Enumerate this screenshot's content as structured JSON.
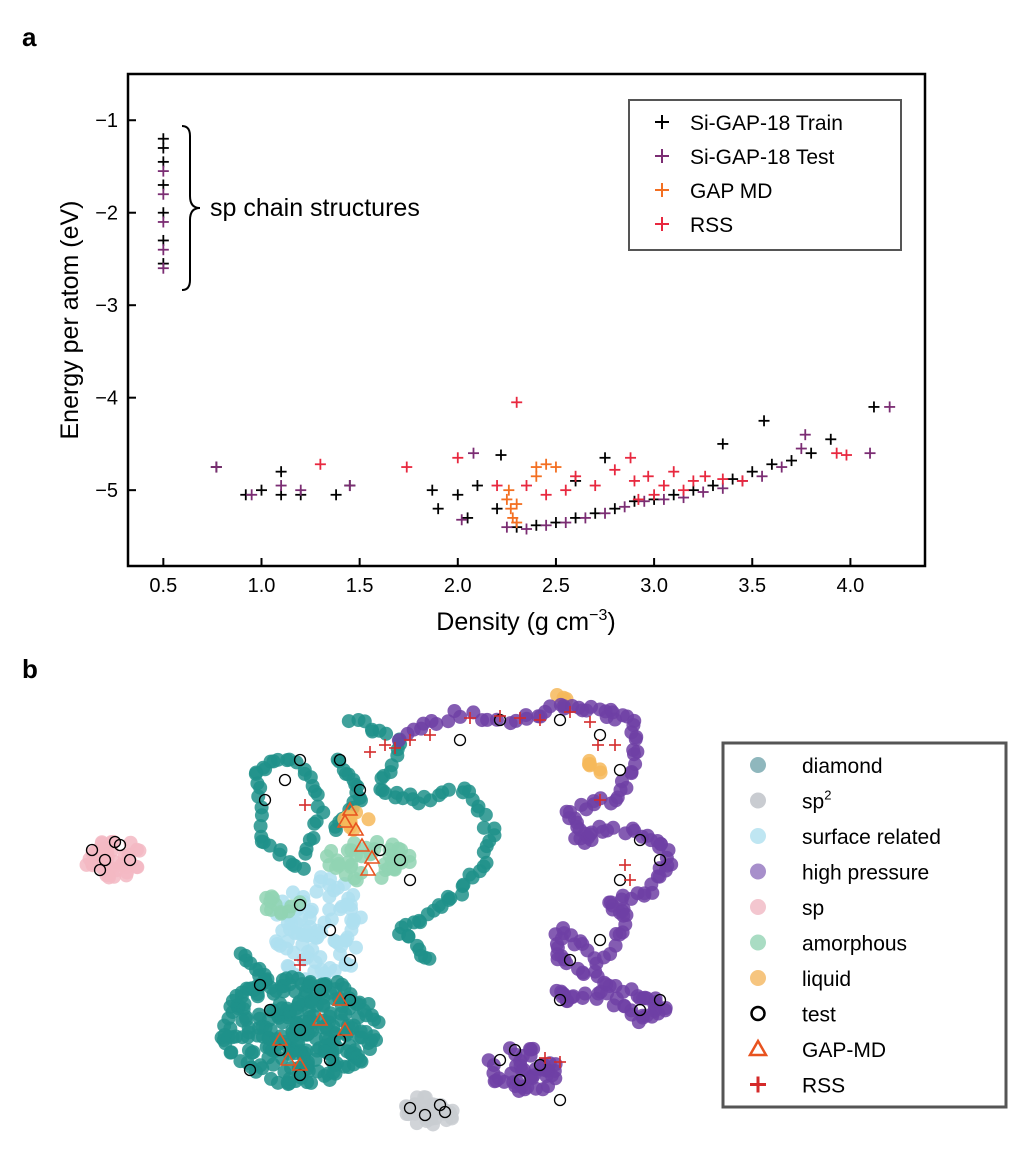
{
  "panel_labels": {
    "a": "a",
    "b": "b"
  },
  "chart_data": [
    {
      "type": "scatter",
      "panel": "a",
      "xlabel": "Density (g cm",
      "xlabel_sup": "−3",
      "xlabel_end": ")",
      "ylabel": "Energy per atom (eV)",
      "xlim": [
        0.32,
        4.38
      ],
      "ylim": [
        -5.82,
        -0.5
      ],
      "xticks": [
        0.5,
        1.0,
        1.5,
        2.0,
        2.5,
        3.0,
        3.5,
        4.0
      ],
      "xtick_labels": [
        "0.5",
        "1.0",
        "1.5",
        "2.0",
        "2.5",
        "3.0",
        "3.5",
        "4.0"
      ],
      "yticks": [
        -1,
        -2,
        -3,
        -4,
        -5
      ],
      "ytick_labels": [
        "−1",
        "−2",
        "−3",
        "−4",
        "−5"
      ],
      "annotation": "sp chain structures",
      "legend_position": "top-right",
      "series": [
        {
          "name": "Si-GAP-18 Train",
          "color": "#000000",
          "points": [
            [
              0.5,
              -1.2
            ],
            [
              0.5,
              -1.3
            ],
            [
              0.5,
              -1.45
            ],
            [
              0.5,
              -1.7
            ],
            [
              0.5,
              -2.0
            ],
            [
              0.5,
              -2.3
            ],
            [
              0.5,
              -2.55
            ],
            [
              0.77,
              -4.75
            ],
            [
              0.92,
              -5.05
            ],
            [
              1.0,
              -5.0
            ],
            [
              1.1,
              -4.8
            ],
            [
              1.1,
              -5.05
            ],
            [
              1.2,
              -5.05
            ],
            [
              1.38,
              -5.05
            ],
            [
              1.45,
              -4.95
            ],
            [
              1.9,
              -5.2
            ],
            [
              2.0,
              -5.05
            ],
            [
              2.05,
              -5.3
            ],
            [
              2.1,
              -4.95
            ],
            [
              2.2,
              -5.2
            ],
            [
              2.3,
              -5.4
            ],
            [
              2.4,
              -5.38
            ],
            [
              2.5,
              -5.35
            ],
            [
              2.6,
              -5.3
            ],
            [
              2.7,
              -5.25
            ],
            [
              2.8,
              -5.2
            ],
            [
              2.9,
              -5.12
            ],
            [
              3.0,
              -5.1
            ],
            [
              3.1,
              -5.05
            ],
            [
              3.2,
              -5.0
            ],
            [
              3.3,
              -4.95
            ],
            [
              3.4,
              -4.88
            ],
            [
              3.5,
              -4.8
            ],
            [
              3.6,
              -4.72
            ],
            [
              3.7,
              -4.68
            ],
            [
              3.8,
              -4.6
            ],
            [
              3.56,
              -4.25
            ],
            [
              3.35,
              -4.5
            ],
            [
              3.9,
              -4.45
            ],
            [
              4.12,
              -4.1
            ],
            [
              2.6,
              -4.9
            ],
            [
              2.75,
              -4.65
            ],
            [
              2.22,
              -4.62
            ],
            [
              1.87,
              -5.0
            ]
          ]
        },
        {
          "name": "Si-GAP-18 Test",
          "color": "#7b2d73",
          "points": [
            [
              0.5,
              -1.55
            ],
            [
              0.5,
              -1.8
            ],
            [
              0.5,
              -2.1
            ],
            [
              0.5,
              -2.4
            ],
            [
              0.5,
              -2.6
            ],
            [
              0.77,
              -4.75
            ],
            [
              0.95,
              -5.05
            ],
            [
              1.1,
              -4.95
            ],
            [
              1.2,
              -5.0
            ],
            [
              1.45,
              -4.95
            ],
            [
              2.02,
              -5.32
            ],
            [
              2.25,
              -5.4
            ],
            [
              2.35,
              -5.42
            ],
            [
              2.45,
              -5.38
            ],
            [
              2.55,
              -5.35
            ],
            [
              2.65,
              -5.3
            ],
            [
              2.75,
              -5.25
            ],
            [
              2.85,
              -5.18
            ],
            [
              2.95,
              -5.12
            ],
            [
              3.05,
              -5.1
            ],
            [
              3.15,
              -5.08
            ],
            [
              3.25,
              -5.02
            ],
            [
              3.35,
              -4.98
            ],
            [
              3.45,
              -4.9
            ],
            [
              3.55,
              -4.85
            ],
            [
              3.65,
              -4.75
            ],
            [
              3.75,
              -4.55
            ],
            [
              3.77,
              -4.4
            ],
            [
              4.1,
              -4.6
            ],
            [
              4.2,
              -4.1
            ],
            [
              2.08,
              -4.6
            ]
          ]
        },
        {
          "name": "GAP MD",
          "color": "#f36f21",
          "points": [
            [
              2.25,
              -5.1
            ],
            [
              2.27,
              -5.2
            ],
            [
              2.28,
              -5.3
            ],
            [
              2.3,
              -5.35
            ],
            [
              2.26,
              -5.0
            ],
            [
              2.3,
              -5.15
            ],
            [
              2.4,
              -4.75
            ],
            [
              2.45,
              -4.72
            ],
            [
              2.5,
              -4.75
            ],
            [
              2.4,
              -4.85
            ]
          ]
        },
        {
          "name": "RSS",
          "color": "#e8283f",
          "points": [
            [
              1.3,
              -4.72
            ],
            [
              1.74,
              -4.75
            ],
            [
              2.0,
              -4.65
            ],
            [
              2.3,
              -4.05
            ],
            [
              2.2,
              -4.95
            ],
            [
              2.35,
              -4.95
            ],
            [
              2.45,
              -5.05
            ],
            [
              2.55,
              -5.0
            ],
            [
              2.6,
              -4.85
            ],
            [
              2.7,
              -4.95
            ],
            [
              2.8,
              -4.78
            ],
            [
              2.9,
              -4.9
            ],
            [
              2.97,
              -4.85
            ],
            [
              3.05,
              -4.95
            ],
            [
              3.1,
              -4.8
            ],
            [
              3.15,
              -5.0
            ],
            [
              3.2,
              -4.9
            ],
            [
              3.26,
              -4.85
            ],
            [
              3.35,
              -4.88
            ],
            [
              3.45,
              -4.9
            ],
            [
              2.88,
              -4.65
            ],
            [
              3.98,
              -4.62
            ],
            [
              3.93,
              -4.6
            ],
            [
              2.92,
              -5.1
            ],
            [
              3.0,
              -5.05
            ]
          ]
        }
      ]
    },
    {
      "type": "scatter",
      "panel": "b",
      "title": "",
      "xlabel": "",
      "ylabel": "",
      "legend_position": "right",
      "series": [
        {
          "name": "diamond",
          "color": "#1f918a"
        },
        {
          "name": "sp²",
          "color": "#c9ccd1"
        },
        {
          "name": "surface related",
          "color": "#aedff0"
        },
        {
          "name": "high pressure",
          "color": "#6e3fa5"
        },
        {
          "name": "sp",
          "color": "#f3b8c3"
        },
        {
          "name": "amorphous",
          "color": "#90d3b3"
        },
        {
          "name": "liquid",
          "color": "#f6b85a"
        },
        {
          "name": "test",
          "color": "#000000"
        },
        {
          "name": "GAP-MD",
          "color": "#e8531f"
        },
        {
          "name": "RSS",
          "color": "#d42a2a"
        }
      ]
    }
  ],
  "legend_a": [
    {
      "label": "Si-GAP-18 Train",
      "color": "#000000"
    },
    {
      "label": "Si-GAP-18 Test",
      "color": "#7b2d73"
    },
    {
      "label": "GAP MD",
      "color": "#f36f21"
    },
    {
      "label": "RSS",
      "color": "#e8283f"
    }
  ],
  "legend_b": [
    {
      "label": "diamond",
      "color": "#8fb7bd",
      "kind": "dot"
    },
    {
      "label": "sp",
      "sup": "2",
      "color": "#c9ccd1",
      "kind": "dot"
    },
    {
      "label": "surface related",
      "color": "#bfe6f2",
      "kind": "dot"
    },
    {
      "label": "high pressure",
      "color": "#a78fcb",
      "kind": "dot"
    },
    {
      "label": "sp",
      "color": "#f3c6cf",
      "kind": "dot"
    },
    {
      "label": "amorphous",
      "color": "#a9dcc3",
      "kind": "dot"
    },
    {
      "label": "liquid",
      "color": "#f6c57f",
      "kind": "dot"
    },
    {
      "label": "test",
      "color": "#000000",
      "kind": "ring"
    },
    {
      "label": "GAP-MD",
      "color": "#e8531f",
      "kind": "triangle"
    },
    {
      "label": "RSS",
      "color": "#d42a2a",
      "kind": "plus"
    }
  ]
}
